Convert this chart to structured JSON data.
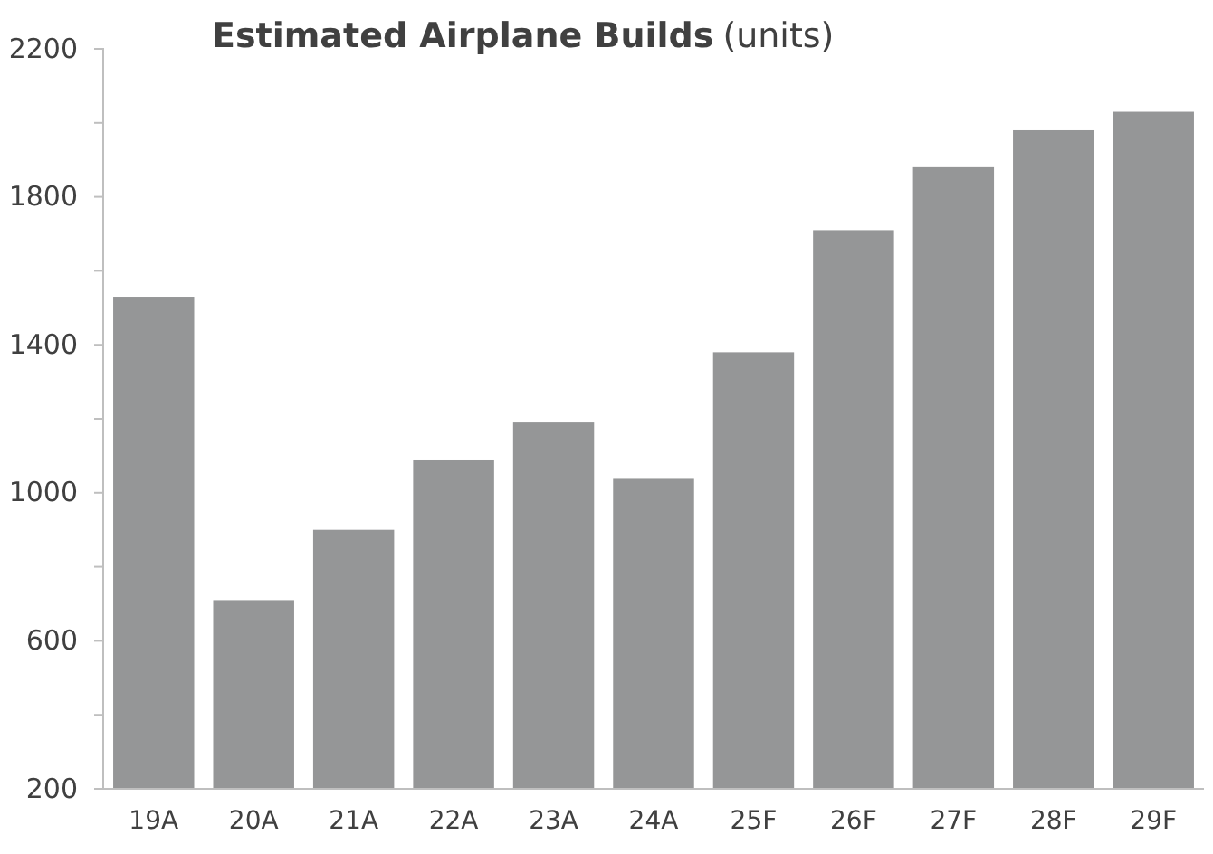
{
  "chart_data": {
    "type": "bar",
    "title": "Estimated Airplane Builds",
    "ylabel": "(units)",
    "categories": [
      "19A",
      "20A",
      "21A",
      "22A",
      "23A",
      "24A",
      "25F",
      "26F",
      "27F",
      "28F",
      "29F"
    ],
    "values": [
      1530,
      710,
      900,
      1090,
      1190,
      1040,
      1380,
      1710,
      1880,
      1980,
      2030
    ],
    "color": "#959697",
    "ylim": [
      200,
      2200
    ],
    "yticks": [
      200,
      {
        "value": 400,
        "label": null
      },
      600,
      {
        "value": 800,
        "label": null
      },
      1000,
      {
        "value": 1200,
        "label": null
      },
      1400,
      {
        "value": 1600,
        "label": null
      },
      1800,
      {
        "value": 2000,
        "label": null
      },
      2200
    ],
    "grid": false
  }
}
